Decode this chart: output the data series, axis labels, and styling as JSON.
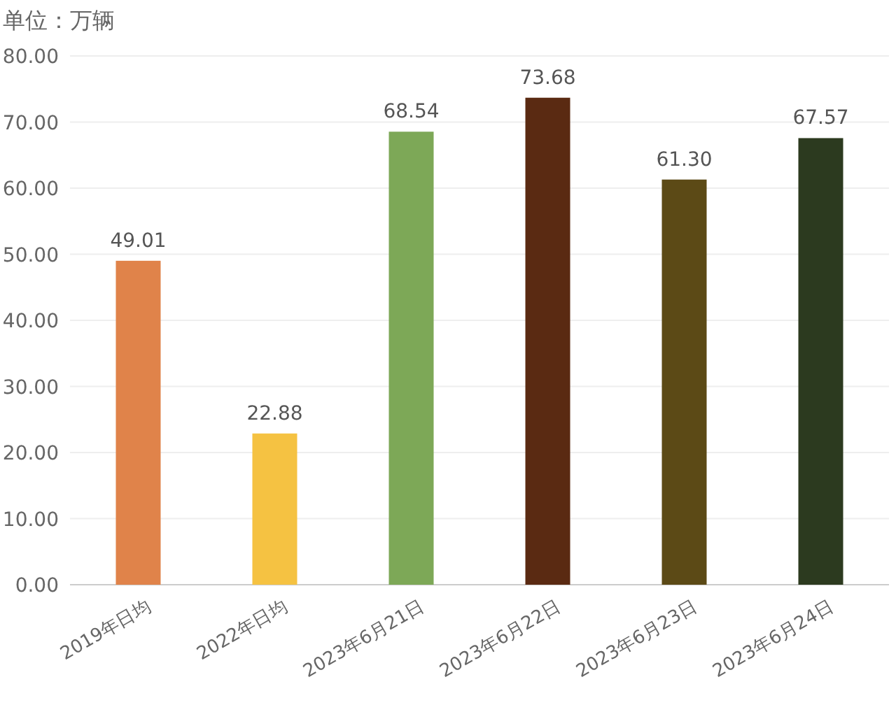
{
  "chart_data": {
    "type": "bar",
    "ylabel": "单位：万辆",
    "categories": [
      "2019年日均",
      "2022年日均",
      "2023年6月21日",
      "2023年6月22日",
      "2023年6月23日",
      "2023年6月24日"
    ],
    "values": [
      49.01,
      22.88,
      68.54,
      73.68,
      61.3,
      67.57
    ],
    "colors": [
      "#e0834a",
      "#f5c242",
      "#7da857",
      "#5a2a12",
      "#5c4a16",
      "#2c3a1f"
    ],
    "ylim": [
      0,
      80
    ],
    "yticks": [
      {
        "value": 0,
        "label": "0.00"
      },
      {
        "value": 10,
        "label": "10.00"
      },
      {
        "value": 20,
        "label": "20.00"
      },
      {
        "value": 30,
        "label": "30.00"
      },
      {
        "value": 40,
        "label": "40.00"
      },
      {
        "value": 50,
        "label": "50.00"
      },
      {
        "value": 60,
        "label": "60.00"
      },
      {
        "value": 70,
        "label": "70.00"
      },
      {
        "value": 80,
        "label": "80.00"
      }
    ],
    "value_labels": [
      "49.01",
      "22.88",
      "68.54",
      "73.68",
      "61.30",
      "67.57"
    ],
    "grid": "y"
  }
}
